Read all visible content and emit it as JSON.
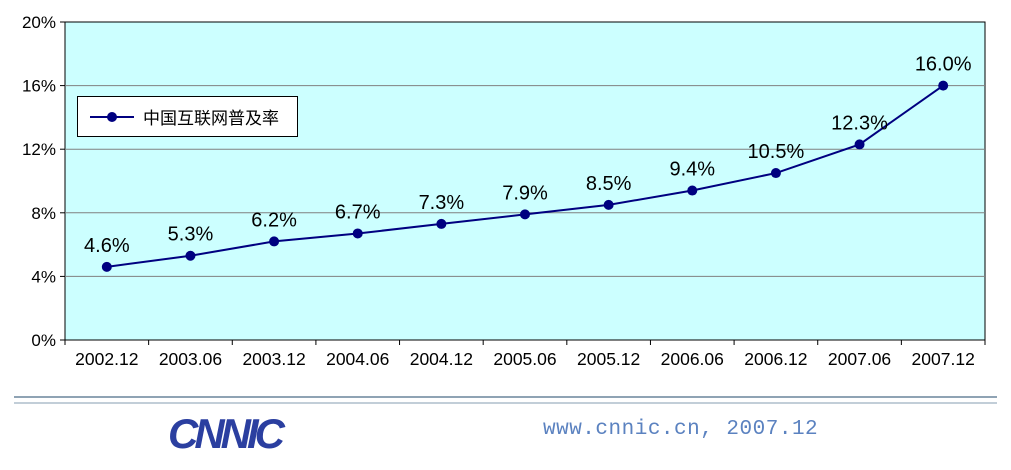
{
  "chart_data": {
    "type": "line",
    "title": "",
    "xlabel": "",
    "ylabel": "",
    "categories": [
      "2002.12",
      "2003.06",
      "2003.12",
      "2004.06",
      "2004.12",
      "2005.06",
      "2005.12",
      "2006.06",
      "2006.12",
      "2007.06",
      "2007.12"
    ],
    "series": [
      {
        "name": "中国互联网普及率",
        "values": [
          4.6,
          5.3,
          6.2,
          6.7,
          7.3,
          7.9,
          8.5,
          9.4,
          10.5,
          12.3,
          16.0
        ]
      }
    ],
    "data_labels": [
      "4.6%",
      "5.3%",
      "6.2%",
      "6.7%",
      "7.3%",
      "7.9%",
      "8.5%",
      "9.4%",
      "10.5%",
      "12.3%",
      "16.0%"
    ],
    "ylim": [
      0,
      20
    ],
    "ytick_step": 4,
    "ytick_labels": [
      "0%",
      "4%",
      "8%",
      "12%",
      "16%",
      "20%"
    ],
    "grid": true,
    "legend_position": "upper-left",
    "colors": {
      "line": "#000080",
      "marker": "#000080",
      "plot_bg": "#ccffff",
      "grid": "#808080",
      "border": "#000000",
      "label_text": "#000000"
    }
  },
  "footer": {
    "logo": "CNNIC",
    "site_text": "www.cnnic.cn, 2007.12"
  }
}
